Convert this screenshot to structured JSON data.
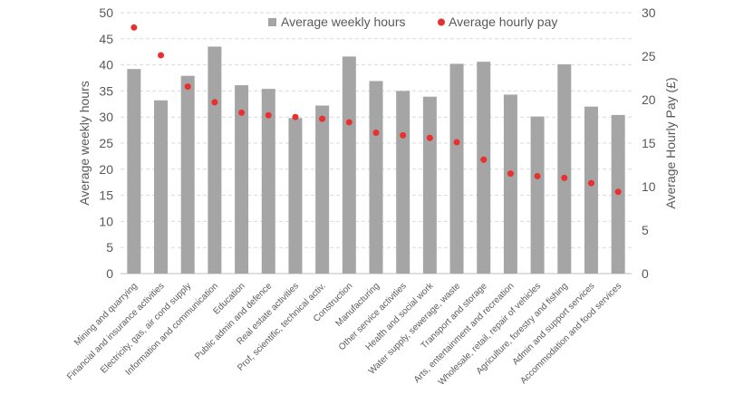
{
  "chart_data": {
    "type": "bar",
    "categories": [
      "Mining and quarrying",
      "Financial and insurance activities",
      "Electricity, gas, air cond supply",
      "Information and communication",
      "Education",
      "Public admin and defence",
      "Real estate activities",
      "Prof, scientific, technical activ.",
      "Construction",
      "Manufacturing",
      "Other service activities",
      "Health and social work",
      "Water supply, sewerage, waste",
      "Transport and storage",
      "Arts, entertainment and recreation",
      "Wholesale, retail, repair of vehicles",
      "Agriculture, forestry and fishing",
      "Admin and support services",
      "Accommodation and food services"
    ],
    "series": [
      {
        "name": "Average weekly hours",
        "type": "bar",
        "axis": "left",
        "color": "#a5a5a5",
        "values": [
          39.2,
          33.2,
          37.9,
          43.5,
          36.1,
          35.4,
          29.8,
          32.2,
          41.6,
          36.9,
          35.0,
          33.9,
          40.2,
          40.6,
          34.3,
          30.1,
          40.1,
          32.0,
          30.4
        ]
      },
      {
        "name": "Average hourly pay",
        "type": "scatter",
        "axis": "right",
        "color": "#e8302e",
        "values": [
          28.3,
          25.1,
          21.5,
          19.7,
          18.5,
          18.2,
          18.0,
          17.8,
          17.4,
          16.2,
          15.9,
          15.6,
          15.1,
          13.1,
          11.5,
          11.2,
          11.0,
          10.4,
          9.4
        ]
      }
    ],
    "ylabel": "Average weekly hours",
    "ylim": [
      0,
      50
    ],
    "yticks": [
      0,
      5,
      10,
      15,
      20,
      25,
      30,
      35,
      40,
      45,
      50
    ],
    "y2label": "Average Hourly Pay (£)",
    "y2lim": [
      0,
      30
    ],
    "y2ticks": [
      0,
      5,
      10,
      15,
      20,
      25,
      30
    ],
    "xlabel": "",
    "title": "",
    "grid": true,
    "legend_position": "top-right"
  }
}
